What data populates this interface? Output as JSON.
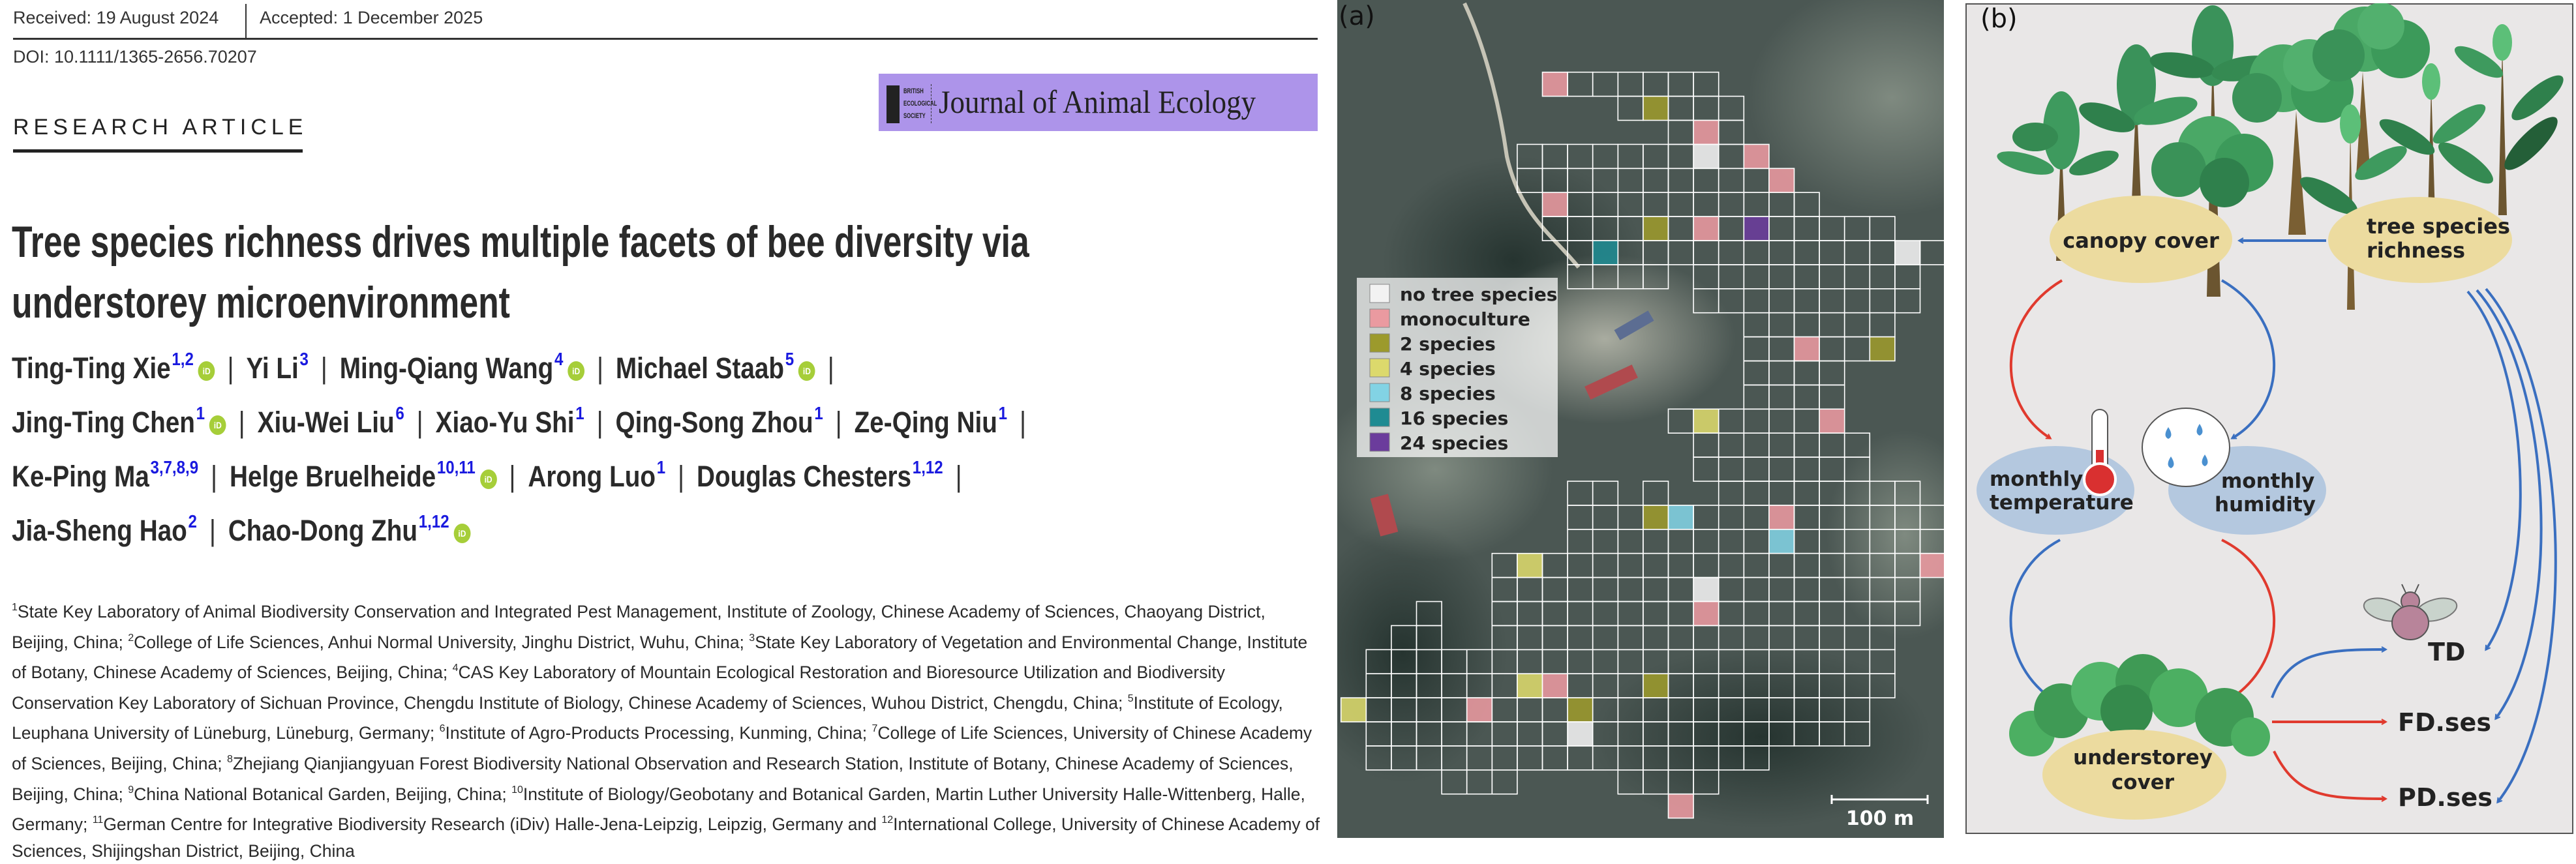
{
  "header": {
    "received": "Received: 19 August 2024",
    "accepted": "Accepted: 1 December 2025",
    "doi": "DOI: 10.1111/1365-2656.70207",
    "article_type": "RESEARCH ARTICLE"
  },
  "journal_logo": {
    "society_lines": [
      "BRITISH",
      "ECOLOGICAL",
      "SOCIETY"
    ],
    "journal_name": "Journal of Animal Ecology",
    "color": "#ad94ea"
  },
  "title_lines": [
    "Tree species richness drives multiple facets of bee diversity via",
    "understorey microenvironment"
  ],
  "author_lines": [
    [
      {
        "name": "Ting-Ting Xie",
        "sup": "1,2",
        "orcid": true
      },
      {
        "name": "Yi Li",
        "sup": "3",
        "orcid": false
      },
      {
        "name": "Ming-Qiang Wang",
        "sup": "4",
        "orcid": true
      },
      {
        "name": "Michael Staab",
        "sup": "5",
        "orcid": true
      }
    ],
    [
      {
        "name": "Jing-Ting Chen",
        "sup": "1",
        "orcid": true
      },
      {
        "name": "Xiu-Wei Liu",
        "sup": "6",
        "orcid": false
      },
      {
        "name": "Xiao-Yu Shi",
        "sup": "1",
        "orcid": false
      },
      {
        "name": "Qing-Song Zhou",
        "sup": "1",
        "orcid": false
      },
      {
        "name": "Ze-Qing Niu",
        "sup": "1",
        "orcid": false
      }
    ],
    [
      {
        "name": "Ke-Ping Ma",
        "sup": "3,7,8,9",
        "orcid": false
      },
      {
        "name": "Helge Bruelheide",
        "sup": "10,11",
        "orcid": true
      },
      {
        "name": "Arong Luo",
        "sup": "1",
        "orcid": false
      },
      {
        "name": "Douglas Chesters",
        "sup": "1,12",
        "orcid": false
      }
    ],
    [
      {
        "name": "Jia-Sheng Hao",
        "sup": "2",
        "orcid": false
      },
      {
        "name": "Chao-Dong Zhu",
        "sup": "1,12",
        "orcid": true
      }
    ]
  ],
  "orcid_label": "iD",
  "separator": "|",
  "affiliations": [
    {
      "num": "1",
      "text": "State Key Laboratory of Animal Biodiversity Conservation and Integrated Pest Management, Institute of Zoology, Chinese Academy of Sciences, Chaoyang District, Beijing, China; "
    },
    {
      "num": "2",
      "text": "College of Life Sciences, Anhui Normal University, Jinghu District, Wuhu, China; "
    },
    {
      "num": "3",
      "text": "State Key Laboratory of Vegetation and Environmental Change, Institute of Botany, Chinese Academy of Sciences, Beijing, China; "
    },
    {
      "num": "4",
      "text": "CAS Key Laboratory of Mountain Ecological Restoration and Bioresource Utilization and Biodiversity Conservation Key Laboratory of Sichuan Province, Chengdu Institute of Biology, Chinese Academy of Sciences, Wuhou District, Chengdu, China; "
    },
    {
      "num": "5",
      "text": "Institute of Ecology, Leuphana University of Lüneburg, Lüneburg, Germany; "
    },
    {
      "num": "6",
      "text": "Institute of Agro-Products Processing, Kunming, China; "
    },
    {
      "num": "7",
      "text": "College of Life Sciences, University of Chinese Academy of Sciences, Beijing, China; "
    },
    {
      "num": "8",
      "text": "Zhejiang Qianjiangyuan Forest Biodiversity National Observation and Research Station, Institute of Botany, Chinese Academy of Sciences, Beijing, China; "
    },
    {
      "num": "9",
      "text": "China National Botanical Garden, Beijing, China; "
    },
    {
      "num": "10",
      "text": "Institute of Biology/Geobotany and Botanical Garden, Martin Luther University Halle-Wittenberg, Halle, Germany; "
    },
    {
      "num": "11",
      "text": "German Centre for Integrative Biodiversity Research (iDiv) Halle-Jena-Leipzig, Leipzig, Germany and "
    },
    {
      "num": "12",
      "text": "International College, University of Chinese Academy of Sciences, Shijingshan District, Beijing, China"
    }
  ],
  "map_panel": {
    "label": "(a)",
    "scale_bar": "100 m",
    "legend": [
      {
        "label": "no tree species",
        "color": "#f2f2f2"
      },
      {
        "label": "monoculture",
        "color": "#ea9aa0"
      },
      {
        "label": "2 species",
        "color": "#9c9a2c"
      },
      {
        "label": "4 species",
        "color": "#dcd96c"
      },
      {
        "label": "8 species",
        "color": "#82d3e4"
      },
      {
        "label": "16 species",
        "color": "#1f8b92"
      },
      {
        "label": "24 species",
        "color": "#6b3c9c"
      }
    ]
  },
  "diagram_panel": {
    "label": "(b)",
    "nodes": {
      "canopy": [
        "canopy cover"
      ],
      "richness": [
        "tree species",
        "richness"
      ],
      "temperature": [
        "monthly",
        "temperature"
      ],
      "humidity": [
        "monthly",
        "humidity"
      ],
      "understorey": [
        "understorey",
        "cover"
      ]
    },
    "outcomes": [
      "TD",
      "FD.ses",
      "PD.ses"
    ],
    "colors": {
      "positive": "#3a6fc0",
      "negative": "#e03a2e",
      "node_yellow": "#ecdb9f",
      "node_blue": "#b4c8df",
      "background": "#e9e7e7"
    }
  }
}
